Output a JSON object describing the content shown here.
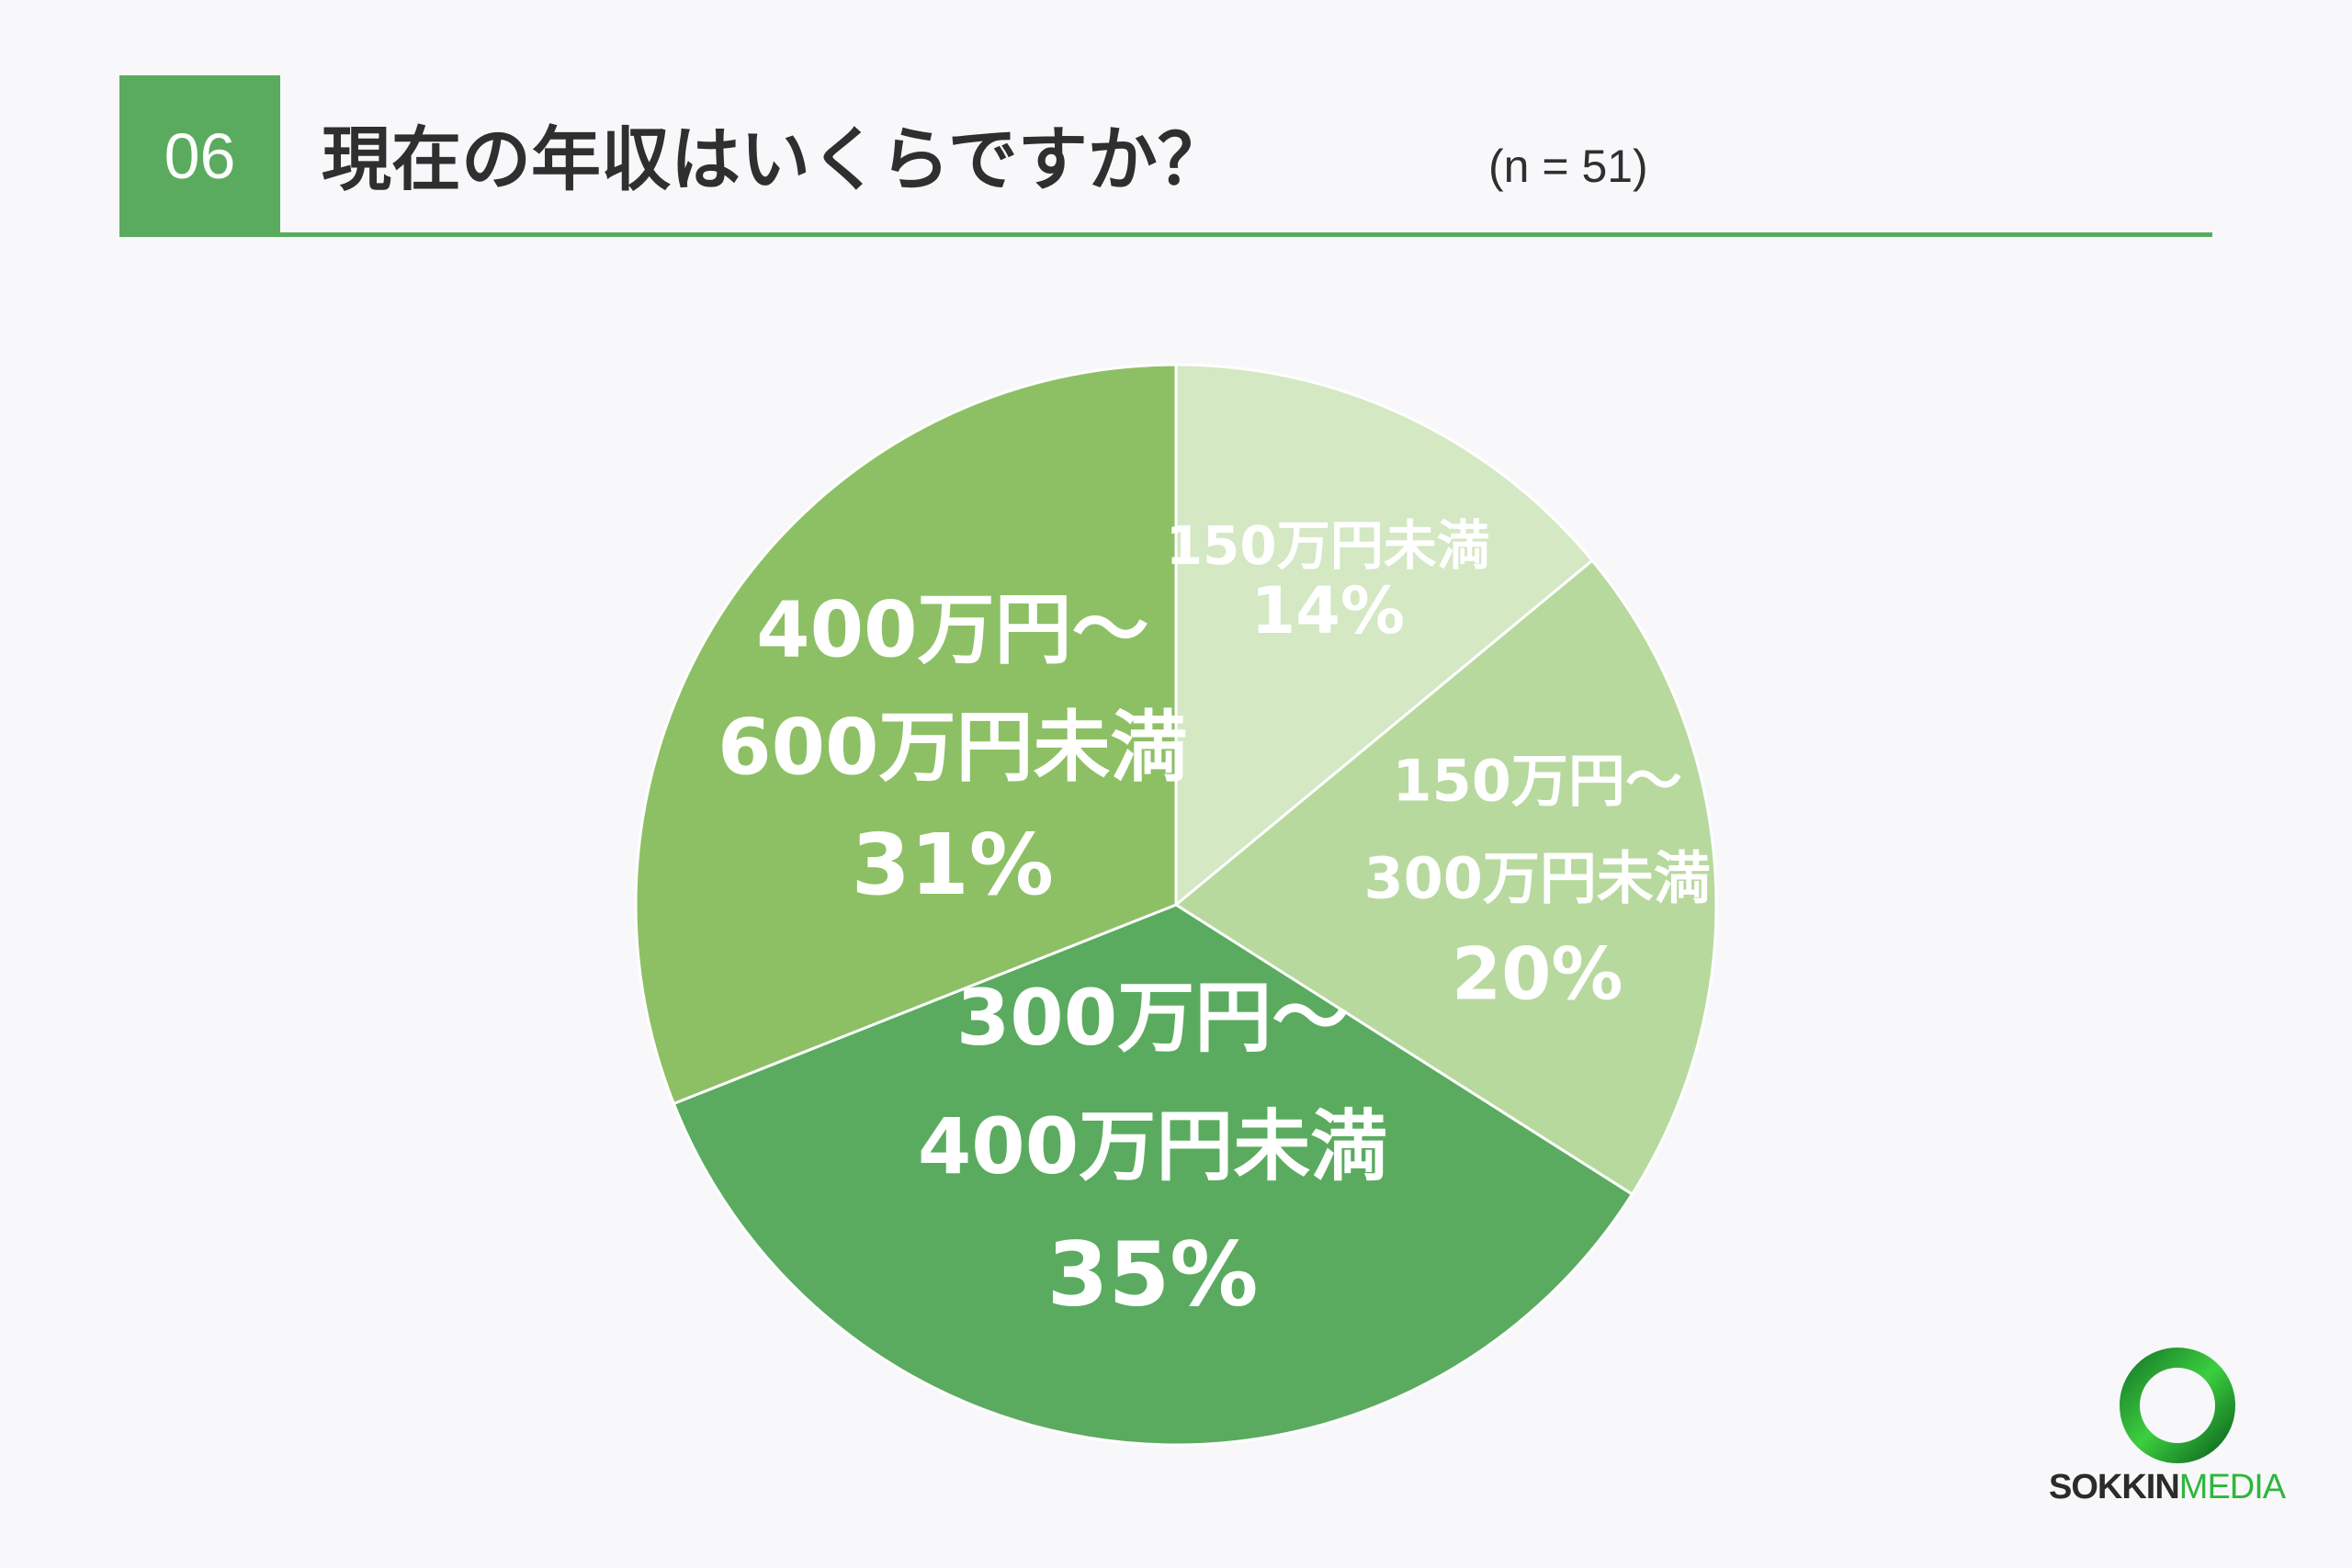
{
  "header": {
    "question_number": "06",
    "title": "現在の年収はいくらですか？",
    "sample_size": "(n = 51)"
  },
  "colors": {
    "accent": "#5aab5f",
    "slice_1": "#d3e8c3",
    "slice_2": "#b7d99e",
    "slice_3": "#5aab5f",
    "slice_4": "#8dc065"
  },
  "chart_data": {
    "type": "pie",
    "title": "現在の年収はいくらですか？",
    "start_angle_deg": 0,
    "direction": "clockwise",
    "slices": [
      {
        "lines": [
          "150万円未満"
        ],
        "value": 14,
        "value_label": "14%"
      },
      {
        "lines": [
          "150万円～",
          "300万円未満"
        ],
        "value": 20,
        "value_label": "20%"
      },
      {
        "lines": [
          "300万円～",
          "400万円未満"
        ],
        "value": 35,
        "value_label": "35%"
      },
      {
        "lines": [
          "400万円～",
          "600万円未満"
        ],
        "value": 31,
        "value_label": "31%"
      }
    ]
  },
  "logo": {
    "text_bold": "SOKKIN",
    "text_light": "MEDIA"
  }
}
